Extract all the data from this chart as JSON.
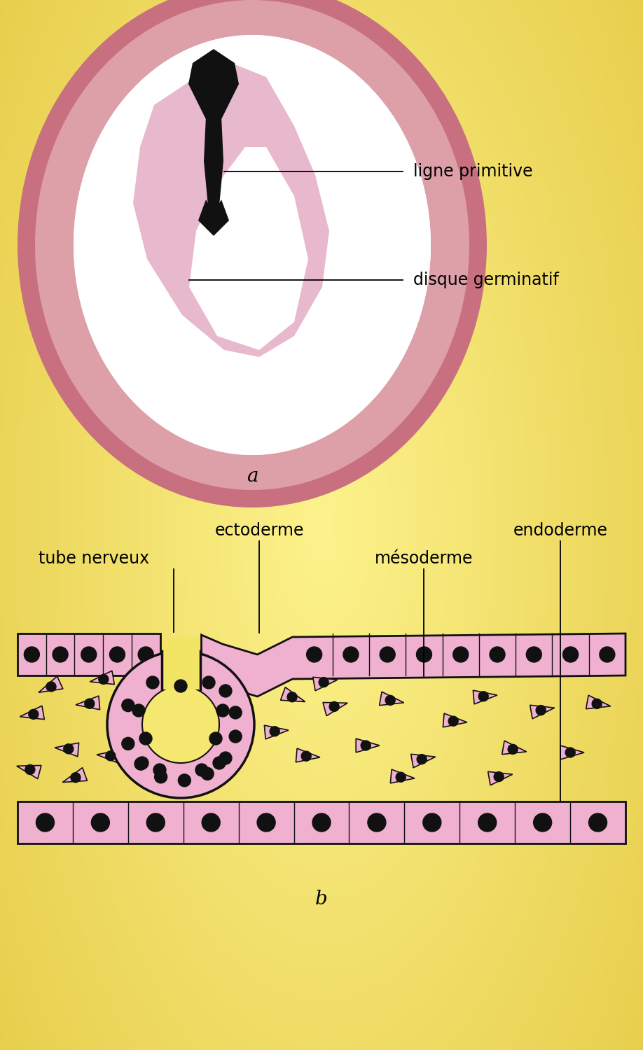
{
  "bg_gradient_colors": [
    "#f5e96e",
    "#e8d84a",
    "#f0e060"
  ],
  "label_a": "a",
  "label_b": "b",
  "outer_egg_color": "#cc7075",
  "white_area_color": "#ffffff",
  "pink_disc_color": "#e8b8cc",
  "primitive_streak_color": "#111111",
  "cell_layer_color": "#f0b0d0",
  "cell_dot_color": "#111111",
  "mesoderm_cell_color": "#f0b0d0",
  "neural_tube_lumen_color": "#f5e870",
  "labels": {
    "disque_germinatif": "disque germinatif",
    "ligne_primitive": "ligne primitive",
    "tube_nerveux": "tube nerveux",
    "ectoderme": "ectoderme",
    "mesoderme": "mésoderme",
    "endoderme": "endoderme"
  },
  "font_size_labels": 17,
  "font_size_ab": 20
}
